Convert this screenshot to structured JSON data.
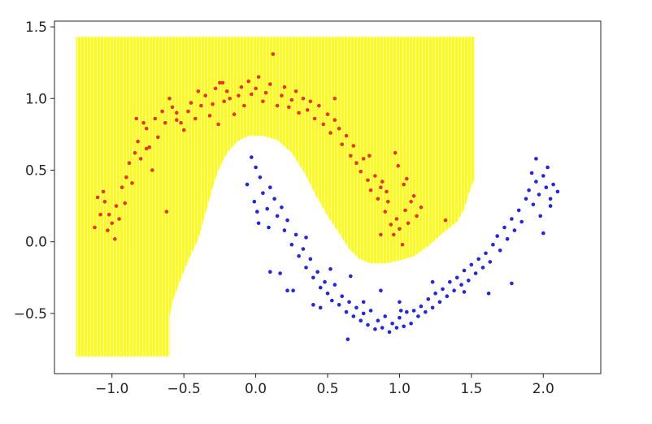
{
  "chart_data": {
    "type": "scatter",
    "title": "",
    "xlabel": "",
    "ylabel": "",
    "xlim": [
      -1.4,
      2.4
    ],
    "ylim": [
      -0.92,
      1.54
    ],
    "grid": false,
    "legend": "none",
    "xticks": [
      -1.0,
      -0.5,
      0.0,
      0.5,
      1.0,
      1.5,
      2.0
    ],
    "xtick_labels": [
      "−1.0",
      "−0.5",
      "0.0",
      "0.5",
      "1.0",
      "1.5",
      "2.0"
    ],
    "yticks": [
      1.5,
      1.0,
      0.5,
      0.0,
      -0.5
    ],
    "ytick_labels": [
      "1.5",
      "1.0",
      "0.5",
      "0.0",
      "−0.5"
    ],
    "region": {
      "label": "decision region (class 0)",
      "color": "#ffff00",
      "stroke": "#f2e800",
      "boundary": [
        [
          -1.25,
          -0.8
        ],
        [
          -1.25,
          1.43
        ],
        [
          1.52,
          1.43
        ],
        [
          1.52,
          0.44
        ],
        [
          1.48,
          0.33
        ],
        [
          1.45,
          0.23
        ],
        [
          1.4,
          0.14
        ],
        [
          1.3,
          0.06
        ],
        [
          1.2,
          -0.03
        ],
        [
          1.1,
          -0.1
        ],
        [
          1.0,
          -0.13
        ],
        [
          0.9,
          -0.15
        ],
        [
          0.8,
          -0.15
        ],
        [
          0.72,
          -0.12
        ],
        [
          0.65,
          -0.05
        ],
        [
          0.58,
          0.06
        ],
        [
          0.5,
          0.18
        ],
        [
          0.42,
          0.32
        ],
        [
          0.34,
          0.48
        ],
        [
          0.25,
          0.62
        ],
        [
          0.15,
          0.71
        ],
        [
          0.05,
          0.74
        ],
        [
          -0.05,
          0.74
        ],
        [
          -0.13,
          0.7
        ],
        [
          -0.2,
          0.62
        ],
        [
          -0.26,
          0.5
        ],
        [
          -0.3,
          0.38
        ],
        [
          -0.35,
          0.2
        ],
        [
          -0.4,
          0.02
        ],
        [
          -0.47,
          -0.13
        ],
        [
          -0.53,
          -0.28
        ],
        [
          -0.58,
          -0.42
        ],
        [
          -0.6,
          -0.52
        ],
        [
          -0.6,
          -0.8
        ]
      ]
    },
    "series": [
      {
        "color": "#e8321e",
        "values": [
          [
            -1.12,
            0.1
          ],
          [
            -1.08,
            0.19
          ],
          [
            -1.05,
            0.28
          ],
          [
            -1.03,
            0.08
          ],
          [
            -1.0,
            0.13
          ],
          [
            -0.98,
            0.02
          ],
          [
            -1.02,
            0.19
          ],
          [
            -1.1,
            0.31
          ],
          [
            -1.06,
            0.35
          ],
          [
            -0.97,
            0.25
          ],
          [
            -0.95,
            0.16
          ],
          [
            -0.93,
            0.38
          ],
          [
            -0.9,
            0.45
          ],
          [
            -0.91,
            0.27
          ],
          [
            -0.88,
            0.55
          ],
          [
            -0.86,
            0.41
          ],
          [
            -0.84,
            0.62
          ],
          [
            -0.82,
            0.7
          ],
          [
            -0.8,
            0.58
          ],
          [
            -0.78,
            0.83
          ],
          [
            -0.76,
            0.79
          ],
          [
            -0.74,
            0.66
          ],
          [
            -0.72,
            0.5
          ],
          [
            -0.7,
            0.86
          ],
          [
            -0.68,
            0.73
          ],
          [
            -0.65,
            0.91
          ],
          [
            -0.63,
            0.83
          ],
          [
            -0.6,
            1.0
          ],
          [
            -0.58,
            0.94
          ],
          [
            -0.55,
            0.85
          ],
          [
            -0.52,
            0.83
          ],
          [
            -0.5,
            0.78
          ],
          [
            -0.47,
            0.91
          ],
          [
            -0.45,
            0.97
          ],
          [
            -0.42,
            0.86
          ],
          [
            -0.4,
            1.05
          ],
          [
            -0.38,
            0.95
          ],
          [
            -0.35,
            1.02
          ],
          [
            -0.32,
            0.88
          ],
          [
            -0.3,
            0.96
          ],
          [
            -0.28,
            1.07
          ],
          [
            -0.25,
            1.11
          ],
          [
            -0.22,
            0.98
          ],
          [
            -0.2,
            1.05
          ],
          [
            -0.18,
            1.0
          ],
          [
            -0.15,
            0.89
          ],
          [
            -0.12,
            1.02
          ],
          [
            -0.1,
            1.08
          ],
          [
            -0.08,
            0.95
          ],
          [
            -0.05,
            1.12
          ],
          [
            -0.03,
            1.03
          ],
          [
            0.0,
            1.07
          ],
          [
            0.02,
            1.15
          ],
          [
            0.05,
            0.98
          ],
          [
            0.07,
            1.04
          ],
          [
            0.1,
            1.1
          ],
          [
            0.12,
            1.31
          ],
          [
            0.15,
            0.95
          ],
          [
            0.18,
            1.02
          ],
          [
            0.2,
            1.08
          ],
          [
            0.23,
            0.94
          ],
          [
            0.25,
            0.99
          ],
          [
            0.28,
            1.05
          ],
          [
            0.3,
            0.9
          ],
          [
            0.33,
            1.0
          ],
          [
            0.36,
            0.92
          ],
          [
            0.38,
            0.98
          ],
          [
            0.41,
            0.86
          ],
          [
            0.44,
            0.95
          ],
          [
            0.47,
            0.82
          ],
          [
            0.5,
            0.89
          ],
          [
            0.52,
            0.76
          ],
          [
            0.55,
            0.85
          ],
          [
            0.58,
            0.79
          ],
          [
            0.6,
            0.68
          ],
          [
            0.63,
            0.74
          ],
          [
            0.66,
            0.6
          ],
          [
            0.68,
            0.67
          ],
          [
            0.7,
            0.55
          ],
          [
            0.73,
            0.49
          ],
          [
            0.75,
            0.58
          ],
          [
            0.78,
            0.43
          ],
          [
            0.8,
            0.36
          ],
          [
            0.83,
            0.46
          ],
          [
            0.85,
            0.3
          ],
          [
            0.87,
            0.38
          ],
          [
            0.9,
            0.21
          ],
          [
            0.92,
            0.28
          ],
          [
            0.94,
            0.12
          ],
          [
            0.96,
            0.05
          ],
          [
            0.98,
            0.16
          ],
          [
            1.0,
            0.09
          ],
          [
            1.02,
            -0.02
          ],
          [
            1.04,
            0.22
          ],
          [
            1.06,
            0.13
          ],
          [
            1.08,
            0.28
          ],
          [
            1.1,
            0.32
          ],
          [
            1.12,
            0.18
          ],
          [
            1.15,
            0.24
          ],
          [
            -0.83,
            0.86
          ],
          [
            -0.76,
            0.65
          ],
          [
            0.88,
            0.42
          ],
          [
            0.91,
            0.35
          ],
          [
            1.03,
            0.4
          ],
          [
            0.55,
            1.0
          ],
          [
            -0.62,
            0.21
          ],
          [
            -0.55,
            0.9
          ],
          [
            -0.23,
            1.11
          ],
          [
            -0.26,
            0.82
          ],
          [
            0.79,
            0.6
          ],
          [
            0.97,
            0.62
          ],
          [
            1.32,
            0.15
          ],
          [
            0.87,
            0.05
          ],
          [
            0.99,
            0.53
          ],
          [
            1.05,
            0.44
          ]
        ]
      },
      {
        "color": "#1f26e8",
        "values": [
          [
            -0.03,
            0.59
          ],
          [
            0.0,
            0.52
          ],
          [
            -0.06,
            0.4
          ],
          [
            0.03,
            0.45
          ],
          [
            0.05,
            0.34
          ],
          [
            -0.01,
            0.28
          ],
          [
            0.08,
            0.23
          ],
          [
            0.1,
            0.38
          ],
          [
            0.13,
            0.3
          ],
          [
            0.15,
            0.18
          ],
          [
            0.18,
            0.24
          ],
          [
            0.2,
            0.08
          ],
          [
            0.22,
            0.15
          ],
          [
            0.25,
            -0.02
          ],
          [
            0.28,
            0.05
          ],
          [
            0.3,
            -0.1
          ],
          [
            0.33,
            -0.05
          ],
          [
            0.35,
            -0.18
          ],
          [
            0.38,
            -0.12
          ],
          [
            0.4,
            -0.25
          ],
          [
            0.43,
            -0.21
          ],
          [
            0.45,
            -0.32
          ],
          [
            0.48,
            -0.28
          ],
          [
            0.5,
            -0.36
          ],
          [
            0.53,
            -0.41
          ],
          [
            0.55,
            -0.3
          ],
          [
            0.58,
            -0.44
          ],
          [
            0.6,
            -0.38
          ],
          [
            0.63,
            -0.49
          ],
          [
            0.65,
            -0.42
          ],
          [
            0.68,
            -0.52
          ],
          [
            0.7,
            -0.46
          ],
          [
            0.73,
            -0.55
          ],
          [
            0.75,
            -0.5
          ],
          [
            0.78,
            -0.58
          ],
          [
            0.8,
            -0.48
          ],
          [
            0.83,
            -0.61
          ],
          [
            0.85,
            -0.55
          ],
          [
            0.88,
            -0.6
          ],
          [
            0.9,
            -0.52
          ],
          [
            0.93,
            -0.63
          ],
          [
            0.95,
            -0.57
          ],
          [
            0.98,
            -0.6
          ],
          [
            1.0,
            -0.53
          ],
          [
            1.03,
            -0.59
          ],
          [
            1.05,
            -0.49
          ],
          [
            1.08,
            -0.57
          ],
          [
            1.1,
            -0.48
          ],
          [
            1.13,
            -0.52
          ],
          [
            1.15,
            -0.45
          ],
          [
            1.18,
            -0.49
          ],
          [
            1.2,
            -0.4
          ],
          [
            1.23,
            -0.46
          ],
          [
            1.25,
            -0.36
          ],
          [
            1.28,
            -0.42
          ],
          [
            1.3,
            -0.33
          ],
          [
            1.33,
            -0.38
          ],
          [
            1.35,
            -0.28
          ],
          [
            1.38,
            -0.34
          ],
          [
            1.4,
            -0.25
          ],
          [
            1.43,
            -0.3
          ],
          [
            1.45,
            -0.2
          ],
          [
            1.48,
            -0.27
          ],
          [
            1.5,
            -0.16
          ],
          [
            1.53,
            -0.22
          ],
          [
            1.55,
            -0.12
          ],
          [
            1.58,
            -0.18
          ],
          [
            1.6,
            -0.08
          ],
          [
            1.63,
            -0.14
          ],
          [
            1.65,
            -0.02
          ],
          [
            1.68,
            0.04
          ],
          [
            1.7,
            -0.06
          ],
          [
            1.73,
            0.1
          ],
          [
            1.75,
            0.02
          ],
          [
            1.78,
            0.16
          ],
          [
            1.8,
            0.08
          ],
          [
            1.83,
            0.22
          ],
          [
            1.85,
            0.14
          ],
          [
            1.88,
            0.3
          ],
          [
            1.9,
            0.36
          ],
          [
            1.93,
            0.26
          ],
          [
            1.95,
            0.42
          ],
          [
            1.97,
            0.33
          ],
          [
            2.0,
            0.46
          ],
          [
            2.02,
            0.38
          ],
          [
            2.05,
            0.3
          ],
          [
            2.07,
            0.4
          ],
          [
            2.03,
            0.52
          ],
          [
            1.95,
            0.58
          ],
          [
            1.92,
            0.48
          ],
          [
            1.98,
            0.18
          ],
          [
            2.05,
            0.25
          ],
          [
            2.1,
            0.35
          ],
          [
            2.0,
            0.06
          ],
          [
            1.78,
            -0.29
          ],
          [
            1.62,
            -0.36
          ],
          [
            1.45,
            -0.35
          ],
          [
            1.0,
            -0.42
          ],
          [
            0.87,
            -0.34
          ],
          [
            0.75,
            -0.42
          ],
          [
            0.64,
            -0.68
          ],
          [
            0.45,
            -0.46
          ],
          [
            0.35,
            0.03
          ],
          [
            0.26,
            -0.34
          ],
          [
            0.17,
            -0.22
          ],
          [
            0.09,
            0.1
          ],
          [
            0.01,
            0.21
          ],
          [
            0.22,
            -0.34
          ],
          [
            0.4,
            -0.44
          ],
          [
            1.23,
            -0.28
          ],
          [
            0.1,
            -0.21
          ],
          [
            0.02,
            0.13
          ],
          [
            0.52,
            -0.19
          ],
          [
            0.66,
            -0.24
          ],
          [
            1.01,
            -0.48
          ]
        ]
      }
    ]
  }
}
